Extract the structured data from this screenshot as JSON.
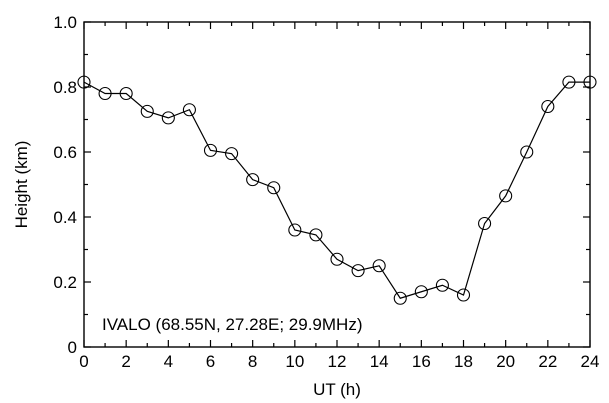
{
  "chart_data": {
    "type": "line",
    "xlabel": "UT (h)",
    "ylabel": "Height (km)",
    "xlim": [
      0,
      24
    ],
    "ylim": [
      0,
      1.0
    ],
    "x_ticks": [
      "0",
      "2",
      "4",
      "6",
      "8",
      "10",
      "12",
      "14",
      "16",
      "18",
      "20",
      "22",
      "24"
    ],
    "y_ticks": [
      "0",
      "0.2",
      "0.4",
      "0.6",
      "0.8",
      "1.0"
    ],
    "annotation": "IVALO (68.55N, 27.28E; 29.9MHz)",
    "grid": false,
    "markers": "open-circle",
    "series": [
      {
        "x": [
          0,
          1,
          2,
          3,
          4,
          5,
          6,
          7,
          8,
          9,
          10,
          11,
          12,
          13,
          14,
          15,
          16,
          17,
          18,
          19,
          20,
          21,
          22,
          23,
          24
        ],
        "y": [
          0.815,
          0.78,
          0.78,
          0.725,
          0.705,
          0.73,
          0.605,
          0.595,
          0.515,
          0.49,
          0.36,
          0.345,
          0.27,
          0.235,
          0.25,
          0.15,
          0.17,
          0.19,
          0.16,
          0.38,
          0.465,
          0.6,
          0.74,
          0.815,
          0.815
        ]
      }
    ]
  }
}
